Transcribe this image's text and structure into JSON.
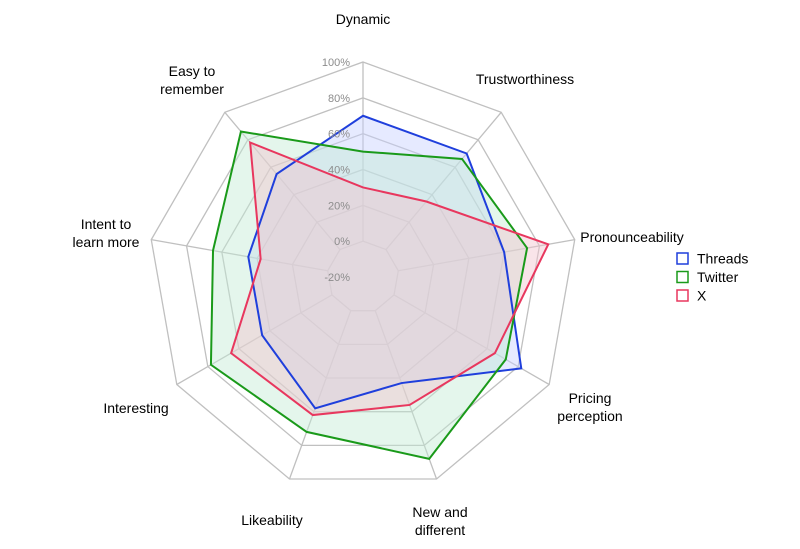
{
  "chart_data": {
    "type": "radar",
    "axes": [
      [
        "Dynamic"
      ],
      [
        "Trustworthiness"
      ],
      [
        "Pronounceability"
      ],
      [
        "Pricing",
        "perception"
      ],
      [
        "New and",
        "different"
      ],
      [
        "Likeability"
      ],
      [
        "Interesting"
      ],
      [
        "Intent to",
        "learn more"
      ],
      [
        "Easy to",
        "remember"
      ]
    ],
    "radial_ticks": [
      "-20%",
      "0%",
      "20%",
      "40%",
      "60%",
      "80%",
      "100%"
    ],
    "rlim": [
      -20,
      100
    ],
    "grid": true,
    "legend_position": "right",
    "series": [
      {
        "name": "Threads",
        "color": "#1f3fdc",
        "fill": "#c8d0ff",
        "values": [
          70,
          70,
          60,
          82,
          43,
          58,
          45,
          45,
          55
        ]
      },
      {
        "name": "Twitter",
        "color": "#1a9a1a",
        "fill": "#c4ecd4",
        "values": [
          50,
          66,
          73,
          72,
          88,
          72,
          78,
          65,
          86
        ]
      },
      {
        "name": "X",
        "color": "#e8375e",
        "fill": "#f2c4cf",
        "values": [
          30,
          35,
          85,
          65,
          56,
          62,
          65,
          38,
          78
        ]
      }
    ]
  }
}
